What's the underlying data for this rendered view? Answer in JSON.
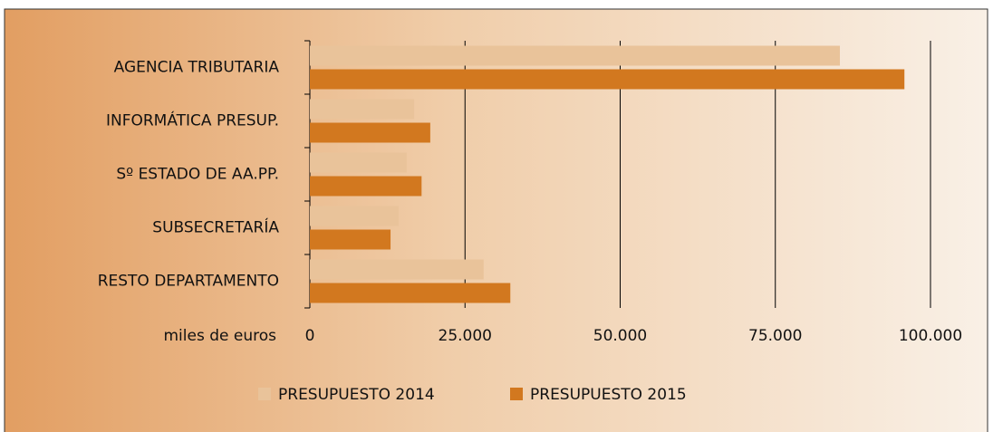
{
  "chart_data": {
    "type": "bar",
    "orientation": "horizontal",
    "categories": [
      "AGENCIA TRIBUTARIA",
      "INFORMÁTICA PRESUP.",
      "Sº ESTADO DE AA.PP.",
      "SUBSECRETARÍA",
      "RESTO DEPARTAMENTO"
    ],
    "series": [
      {
        "name": "PRESUPUESTO 2014",
        "color": "#e9c39a",
        "values": [
          85400,
          16800,
          15600,
          14300,
          28000
        ]
      },
      {
        "name": "PRESUPUESTO 2015",
        "color": "#d2781f",
        "values": [
          95800,
          19400,
          18000,
          13000,
          32300
        ]
      }
    ],
    "x_label": "miles de euros",
    "xlim": [
      0,
      100000
    ],
    "xticks": [
      0,
      {
        "value": 25000,
        "label": "25.000"
      },
      {
        "value": 50000,
        "label": "50.000"
      },
      {
        "value": 75000,
        "label": "75.000"
      },
      {
        "value": 100000,
        "label": "100.000"
      }
    ],
    "grid": true,
    "legend": "bottom"
  }
}
